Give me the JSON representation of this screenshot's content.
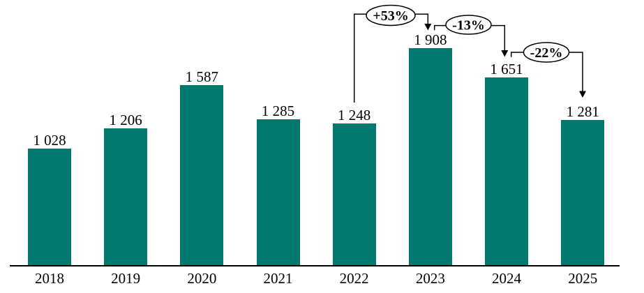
{
  "chart_data": {
    "type": "bar",
    "title": "",
    "xlabel": "",
    "ylabel": "",
    "categories": [
      "2018",
      "2019",
      "2020",
      "2021",
      "2022",
      "2023",
      "2024",
      "2025"
    ],
    "values": [
      1028,
      1206,
      1587,
      1285,
      1248,
      1908,
      1651,
      1281
    ],
    "value_labels": [
      "1 028",
      "1 206",
      "1 587",
      "1 285",
      "1 248",
      "1 908",
      "1 651",
      "1 281"
    ],
    "bar_color": "#01796F",
    "axis_color": "#000000",
    "ylim": [
      0,
      2100
    ],
    "grid": false,
    "legend": false,
    "annotations": [
      {
        "from": "2022",
        "to": "2023",
        "label": "+53%"
      },
      {
        "from": "2023",
        "to": "2024",
        "label": "-13%"
      },
      {
        "from": "2024",
        "to": "2025",
        "label": "-22%"
      }
    ]
  }
}
